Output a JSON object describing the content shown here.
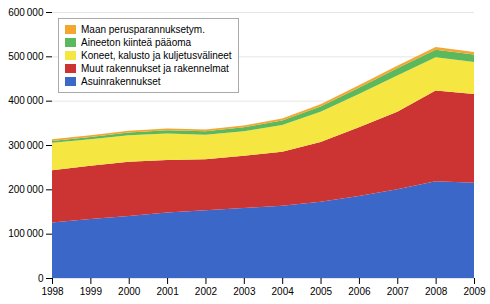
{
  "chart_data": {
    "type": "area",
    "stacked": true,
    "x": [
      1998,
      1999,
      2000,
      2001,
      2002,
      2003,
      2004,
      2005,
      2006,
      2007,
      2008,
      2009
    ],
    "series": [
      {
        "name": "Asuinrakennukset",
        "color": "#3a67c8",
        "values": [
          125000,
          133000,
          140000,
          148000,
          153000,
          158000,
          163000,
          172000,
          185000,
          200000,
          218000,
          215000
        ]
      },
      {
        "name": "Muut rakennukset ja rakennelmat",
        "color": "#cc3333",
        "values": [
          118000,
          120000,
          122000,
          118000,
          115000,
          118000,
          122000,
          135000,
          155000,
          175000,
          205000,
          200000
        ]
      },
      {
        "name": "Koneet, kalusto ja kuljetusvälineet",
        "color": "#f5e642",
        "values": [
          62000,
          60000,
          60000,
          60000,
          55000,
          55000,
          60000,
          68000,
          75000,
          82000,
          75000,
          72000
        ]
      },
      {
        "name": "Aineeton kiinteä pääoma",
        "color": "#5cb85c",
        "values": [
          4000,
          5000,
          6000,
          7000,
          8000,
          9000,
          10000,
          12000,
          14000,
          16000,
          17000,
          17000
        ]
      },
      {
        "name": "Maan perusparannuksetym.",
        "color": "#f4a730",
        "values": [
          4000,
          4000,
          4000,
          4000,
          4000,
          4000,
          4500,
          5000,
          5500,
          6000,
          6000,
          6000
        ]
      }
    ],
    "xlim": [
      1998,
      2009
    ],
    "xticks": [
      1998,
      1999,
      2000,
      2001,
      2002,
      2003,
      2004,
      2005,
      2006,
      2007,
      2008,
      2009
    ],
    "ylim": [
      0,
      600000
    ],
    "yticks": [
      0,
      {
        "value": 100000,
        "label": "100 000"
      },
      {
        "value": 200000,
        "label": "200 000"
      },
      {
        "value": 300000,
        "label": "300 000"
      },
      {
        "value": 400000,
        "label": "400 000"
      },
      {
        "value": 500000,
        "label": "500 000"
      },
      {
        "value": 600000,
        "label": "600 000"
      }
    ],
    "grid": true,
    "legend": "upper left"
  }
}
